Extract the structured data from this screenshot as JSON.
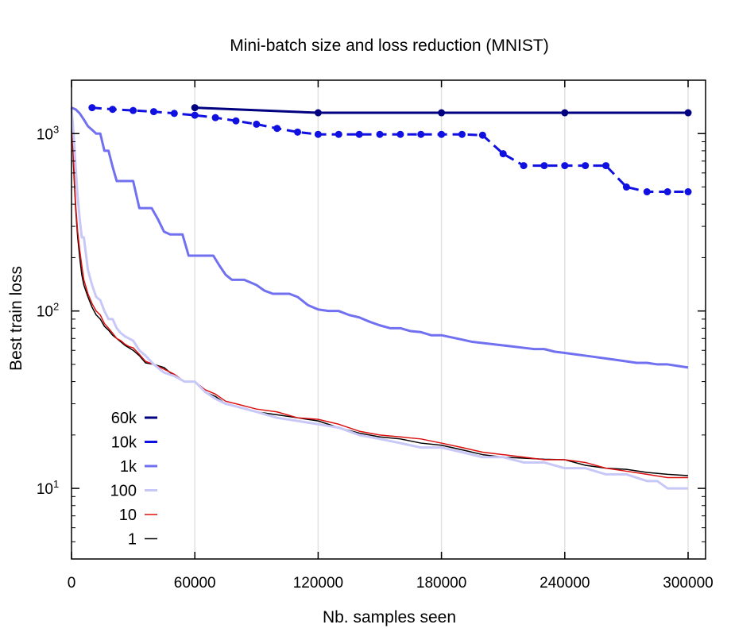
{
  "chart_data": {
    "type": "line",
    "title": "Mini-batch size and loss reduction (MNIST)",
    "xlabel": "Nb. samples seen",
    "ylabel": "Best train loss",
    "xlim": [
      0,
      300000
    ],
    "ylim": [
      4,
      2000
    ],
    "y_scale": "log",
    "grid": "vertical",
    "legend_position": "bottom-left",
    "x_ticks": [
      {
        "value": 0,
        "label": "0"
      },
      {
        "value": 60000,
        "label": "60000"
      },
      {
        "value": 120000,
        "label": "120000"
      },
      {
        "value": 180000,
        "label": "180000"
      },
      {
        "value": 240000,
        "label": "240000"
      },
      {
        "value": 300000,
        "label": "300000"
      }
    ],
    "y_ticks": [
      {
        "value": 10,
        "base": "10",
        "exp": "1"
      },
      {
        "value": 100,
        "base": "10",
        "exp": "2"
      },
      {
        "value": 1000,
        "base": "10",
        "exp": "3"
      }
    ],
    "series": [
      {
        "name": "60k",
        "color": "#000080",
        "width": 3,
        "dash": false,
        "markers": true,
        "x": [
          60000,
          120000,
          180000,
          240000,
          300000
        ],
        "y": [
          1400,
          1310,
          1310,
          1310,
          1310
        ]
      },
      {
        "name": "10k",
        "color": "#1010e0",
        "width": 3,
        "dash": true,
        "markers": true,
        "x": [
          10000,
          20000,
          30000,
          40000,
          50000,
          60000,
          70000,
          80000,
          90000,
          100000,
          110000,
          120000,
          130000,
          140000,
          150000,
          160000,
          170000,
          180000,
          190000,
          200000,
          210000,
          220000,
          230000,
          240000,
          250000,
          260000,
          270000,
          280000,
          290000,
          300000
        ],
        "y": [
          1400,
          1370,
          1350,
          1330,
          1300,
          1270,
          1230,
          1180,
          1130,
          1070,
          1020,
          990,
          990,
          990,
          990,
          990,
          990,
          990,
          990,
          980,
          770,
          660,
          660,
          660,
          660,
          660,
          500,
          470,
          470,
          470
        ]
      },
      {
        "name": "1k",
        "color": "#7070f0",
        "width": 3,
        "dash": false,
        "markers": false,
        "x": [
          0,
          2000,
          4000,
          6000,
          8000,
          10000,
          12000,
          14000,
          16000,
          18000,
          20000,
          22000,
          24000,
          27000,
          30000,
          33000,
          36000,
          39000,
          42000,
          45000,
          48000,
          51000,
          54000,
          57000,
          60000,
          63000,
          66000,
          69000,
          72000,
          75000,
          78000,
          81000,
          84000,
          87000,
          90000,
          94000,
          98000,
          102000,
          106000,
          110000,
          115000,
          120000,
          125000,
          130000,
          135000,
          140000,
          145000,
          150000,
          155000,
          160000,
          165000,
          170000,
          175000,
          180000,
          185000,
          190000,
          195000,
          200000,
          205000,
          210000,
          215000,
          220000,
          225000,
          230000,
          235000,
          240000,
          245000,
          250000,
          255000,
          260000,
          265000,
          270000,
          275000,
          280000,
          285000,
          290000,
          295000,
          300000
        ],
        "y": [
          1400,
          1370,
          1300,
          1200,
          1100,
          1050,
          1000,
          1000,
          800,
          800,
          650,
          540,
          540,
          540,
          540,
          380,
          380,
          380,
          330,
          280,
          270,
          270,
          270,
          205,
          205,
          205,
          205,
          205,
          180,
          160,
          150,
          150,
          150,
          145,
          140,
          130,
          125,
          125,
          125,
          120,
          108,
          102,
          100,
          100,
          95,
          92,
          87,
          83,
          80,
          80,
          77,
          76,
          73,
          73,
          71,
          69,
          67,
          66,
          65,
          64,
          63,
          62,
          61,
          61,
          59,
          58,
          57,
          56,
          55,
          54,
          53,
          52,
          51,
          51,
          50,
          50,
          49,
          48
        ]
      },
      {
        "name": "100",
        "color": "#c8c8f8",
        "width": 3,
        "dash": false,
        "markers": false,
        "x": [
          0,
          1000,
          2000,
          3000,
          4000,
          5000,
          6000,
          8000,
          10000,
          12000,
          14000,
          16000,
          18000,
          20000,
          22000,
          24000,
          26000,
          28000,
          30000,
          33000,
          36000,
          40000,
          45000,
          50000,
          55000,
          60000,
          65000,
          70000,
          75000,
          80000,
          90000,
          100000,
          110000,
          120000,
          130000,
          140000,
          150000,
          160000,
          170000,
          180000,
          190000,
          200000,
          210000,
          220000,
          230000,
          240000,
          250000,
          260000,
          270000,
          280000,
          285000,
          290000,
          300000
        ],
        "y": [
          1400,
          1000,
          650,
          440,
          330,
          260,
          260,
          170,
          140,
          120,
          115,
          100,
          90,
          90,
          80,
          75,
          72,
          70,
          68,
          60,
          56,
          50,
          45,
          43,
          40,
          40,
          35,
          32,
          30,
          29,
          27,
          25,
          24,
          23,
          22,
          20,
          19,
          18,
          17,
          17,
          16,
          15,
          15,
          14,
          14,
          13,
          13,
          12,
          12,
          11,
          11,
          10,
          10
        ]
      },
      {
        "name": "10",
        "color": "#dd1010",
        "width": 1.5,
        "dash": false,
        "markers": false,
        "x": [
          0,
          1000,
          2000,
          3000,
          4000,
          5000,
          6000,
          8000,
          10000,
          12000,
          14000,
          16000,
          18000,
          20000,
          22000,
          24000,
          26000,
          28000,
          30000,
          33000,
          36000,
          40000,
          45000,
          50000,
          55000,
          60000,
          65000,
          70000,
          75000,
          80000,
          90000,
          100000,
          110000,
          120000,
          130000,
          140000,
          150000,
          160000,
          170000,
          180000,
          190000,
          200000,
          210000,
          220000,
          230000,
          240000,
          250000,
          260000,
          270000,
          280000,
          290000,
          300000
        ],
        "y": [
          1400,
          700,
          400,
          280,
          220,
          180,
          150,
          125,
          110,
          100,
          95,
          85,
          80,
          75,
          70,
          68,
          65,
          63,
          62,
          57,
          52,
          50,
          47,
          44,
          40,
          40,
          36,
          34,
          31,
          30,
          28,
          27,
          25,
          24.5,
          23,
          21,
          20,
          19.5,
          19,
          18,
          17,
          16,
          15.5,
          15,
          14.5,
          14.5,
          14,
          13,
          12.5,
          12,
          11.5,
          11.5
        ]
      },
      {
        "name": "1",
        "color": "#000000",
        "width": 1.5,
        "dash": false,
        "markers": false,
        "x": [
          0,
          1000,
          2000,
          3000,
          4000,
          5000,
          6000,
          8000,
          10000,
          12000,
          14000,
          16000,
          18000,
          20000,
          22000,
          24000,
          26000,
          28000,
          30000,
          33000,
          36000,
          40000,
          45000,
          50000,
          55000,
          60000,
          65000,
          70000,
          75000,
          80000,
          90000,
          100000,
          110000,
          120000,
          130000,
          140000,
          150000,
          160000,
          170000,
          180000,
          190000,
          200000,
          210000,
          220000,
          230000,
          240000,
          250000,
          260000,
          270000,
          280000,
          290000,
          300000
        ],
        "y": [
          1400,
          650,
          380,
          260,
          200,
          160,
          140,
          120,
          105,
          95,
          90,
          82,
          78,
          73,
          70,
          67,
          64,
          62,
          60,
          56,
          51,
          50,
          48,
          43,
          40,
          40,
          35,
          33,
          30,
          29,
          27,
          26,
          25,
          24,
          22,
          20.5,
          19.5,
          19,
          18,
          17.5,
          16.5,
          15.5,
          15,
          14.8,
          14.6,
          14.5,
          13.5,
          13,
          12.8,
          12.3,
          12,
          11.8
        ]
      }
    ]
  }
}
